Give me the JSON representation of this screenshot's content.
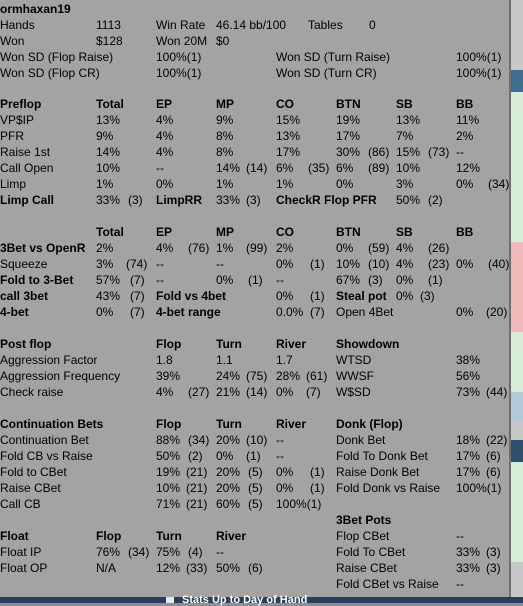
{
  "header": {
    "player": "ormhaxan19",
    "hands_label": "Hands",
    "hands": "1113",
    "winrate_label": "Win Rate",
    "winrate": "46.14 bb/100",
    "tables_label": "Tables",
    "tables": "0",
    "won_label": "Won",
    "won": "$128",
    "won20m_label": "Won 20M",
    "won20m": "$0",
    "wsd_flop_raise_label": "Won SD (Flop Raise)",
    "wsd_flop_raise": "100%(1)",
    "wsd_turn_raise_label": "Won SD (Turn Raise)",
    "wsd_turn_raise": "100%(1)",
    "wsd_flop_cr_label": "Won SD (Flop CR)",
    "wsd_flop_cr": "100%(1)",
    "wsd_turn_cr_label": "Won SD (Turn CR)",
    "wsd_turn_cr": "100%(1)"
  },
  "preflop": {
    "cols": [
      "Preflop",
      "Total",
      "EP",
      "MP",
      "CO",
      "BTN",
      "SB",
      "BB"
    ],
    "vpip": [
      "VP$IP",
      "13%",
      "4%",
      "9%",
      "15%",
      "19%",
      "13%",
      "11%"
    ],
    "pfr": [
      "PFR",
      "9%",
      "4%",
      "8%",
      "13%",
      "17%",
      "7%",
      "2%"
    ],
    "raise1st": [
      "Raise 1st",
      "14%",
      "4%",
      "8%",
      "17%",
      "30%",
      "(86)",
      "15%",
      "(73)",
      "--"
    ],
    "callopen": [
      "Call Open",
      "10%",
      "--",
      "14%",
      "(14)",
      "6%",
      "(35)",
      "6%",
      "(89)",
      "10%",
      "12%"
    ],
    "limp": [
      "Limp",
      "1%",
      "0%",
      "1%",
      "1%",
      "0%",
      "3%",
      "0%",
      "(34)"
    ],
    "limpcall": [
      "Limp Call",
      "33%",
      "(3)",
      "LimpRR",
      "33%",
      "(3)",
      "CheckR Flop PFR",
      "50%",
      "(2)"
    ]
  },
  "threebet": {
    "cols": [
      "Total",
      "EP",
      "MP",
      "CO",
      "BTN",
      "SB",
      "BB"
    ],
    "bet3": [
      "3Bet vs OpenR",
      "2%",
      "4%",
      "(76)",
      "1%",
      "(99)",
      "2%",
      "0%",
      "(59)",
      "4%",
      "(26)"
    ],
    "squeeze": [
      "Squeeze",
      "3%",
      "(74)",
      "--",
      "--",
      "0%",
      "(1)",
      "10%",
      "(10)",
      "4%",
      "(23)",
      "0%",
      "(40)"
    ],
    "fold3": [
      "Fold to 3-Bet",
      "57%",
      "(7)",
      "--",
      "0%",
      "(1)",
      "--",
      "67%",
      "(3)",
      "0%",
      "(1)"
    ],
    "call3": [
      "call 3bet",
      "43%",
      "(7)",
      "Fold vs 4bet",
      "0%",
      "(1)",
      "Steal pot",
      "0%",
      "(3)"
    ],
    "bet4": [
      "4-bet",
      "0%",
      "(7)",
      "4-bet range",
      "0.0%",
      "(7)",
      "Open 4Bet",
      "0%",
      "(20)"
    ]
  },
  "postflop": {
    "cols": [
      "Post flop",
      "Flop",
      "Turn",
      "River",
      "Showdown"
    ],
    "af": [
      "Aggression Factor",
      "1.8",
      "1.1",
      "1.7",
      "WTSD",
      "38%"
    ],
    "afq": [
      "Aggression Frequency",
      "39%",
      "24%",
      "(75)",
      "28%",
      "(61)",
      "WWSF",
      "56%"
    ],
    "cr": [
      "Check raise",
      "4%",
      "(27)",
      "21%",
      "(14)",
      "0%",
      "(7)",
      "W$SD",
      "73%",
      "(44)"
    ]
  },
  "cbets": {
    "cols": [
      "Continuation Bets",
      "Flop",
      "Turn",
      "River",
      "Donk (Flop)"
    ],
    "cb": [
      "Continuation Bet",
      "88%",
      "(34)",
      "20%",
      "(10)",
      "--",
      "Donk Bet",
      "18%",
      "(22)"
    ],
    "foldcbr": [
      "Fold CB vs Raise",
      "50%",
      "(2)",
      "0%",
      "(1)",
      "--",
      "Fold To Donk Bet",
      "17%",
      "(6)"
    ],
    "foldcb": [
      "Fold to CBet",
      "19%",
      "(21)",
      "20%",
      "(5)",
      "0%",
      "(1)",
      "Raise Donk Bet",
      "17%",
      "(6)"
    ],
    "raisecb": [
      "Raise CBet",
      "10%",
      "(21)",
      "20%",
      "(5)",
      "0%",
      "(1)",
      "Fold Donk vs Raise",
      "100%(1)"
    ],
    "callcb": [
      "Call CB",
      "71%",
      "(21)",
      "60%",
      "(5)",
      "100%(1)"
    ]
  },
  "float": {
    "cols": [
      "Float",
      "Flop",
      "Turn",
      "River",
      "3Bet Pots"
    ],
    "ip": [
      "Float IP",
      "76%",
      "(34)",
      "75%",
      "(4)",
      "--",
      "Flop CBet",
      "--"
    ],
    "op": [
      "Float OP",
      "N/A",
      "12%",
      "(33)",
      "50%",
      "(6)",
      "Fold To CBet",
      "33%",
      "(3)"
    ],
    "raise": [
      "Raise CBet",
      "33%",
      "(3)"
    ],
    "foldvr": [
      "Fold CBet vs Raise",
      "--"
    ]
  },
  "footer": {
    "checkbox_label": "Stats Up to Day of Hand"
  }
}
